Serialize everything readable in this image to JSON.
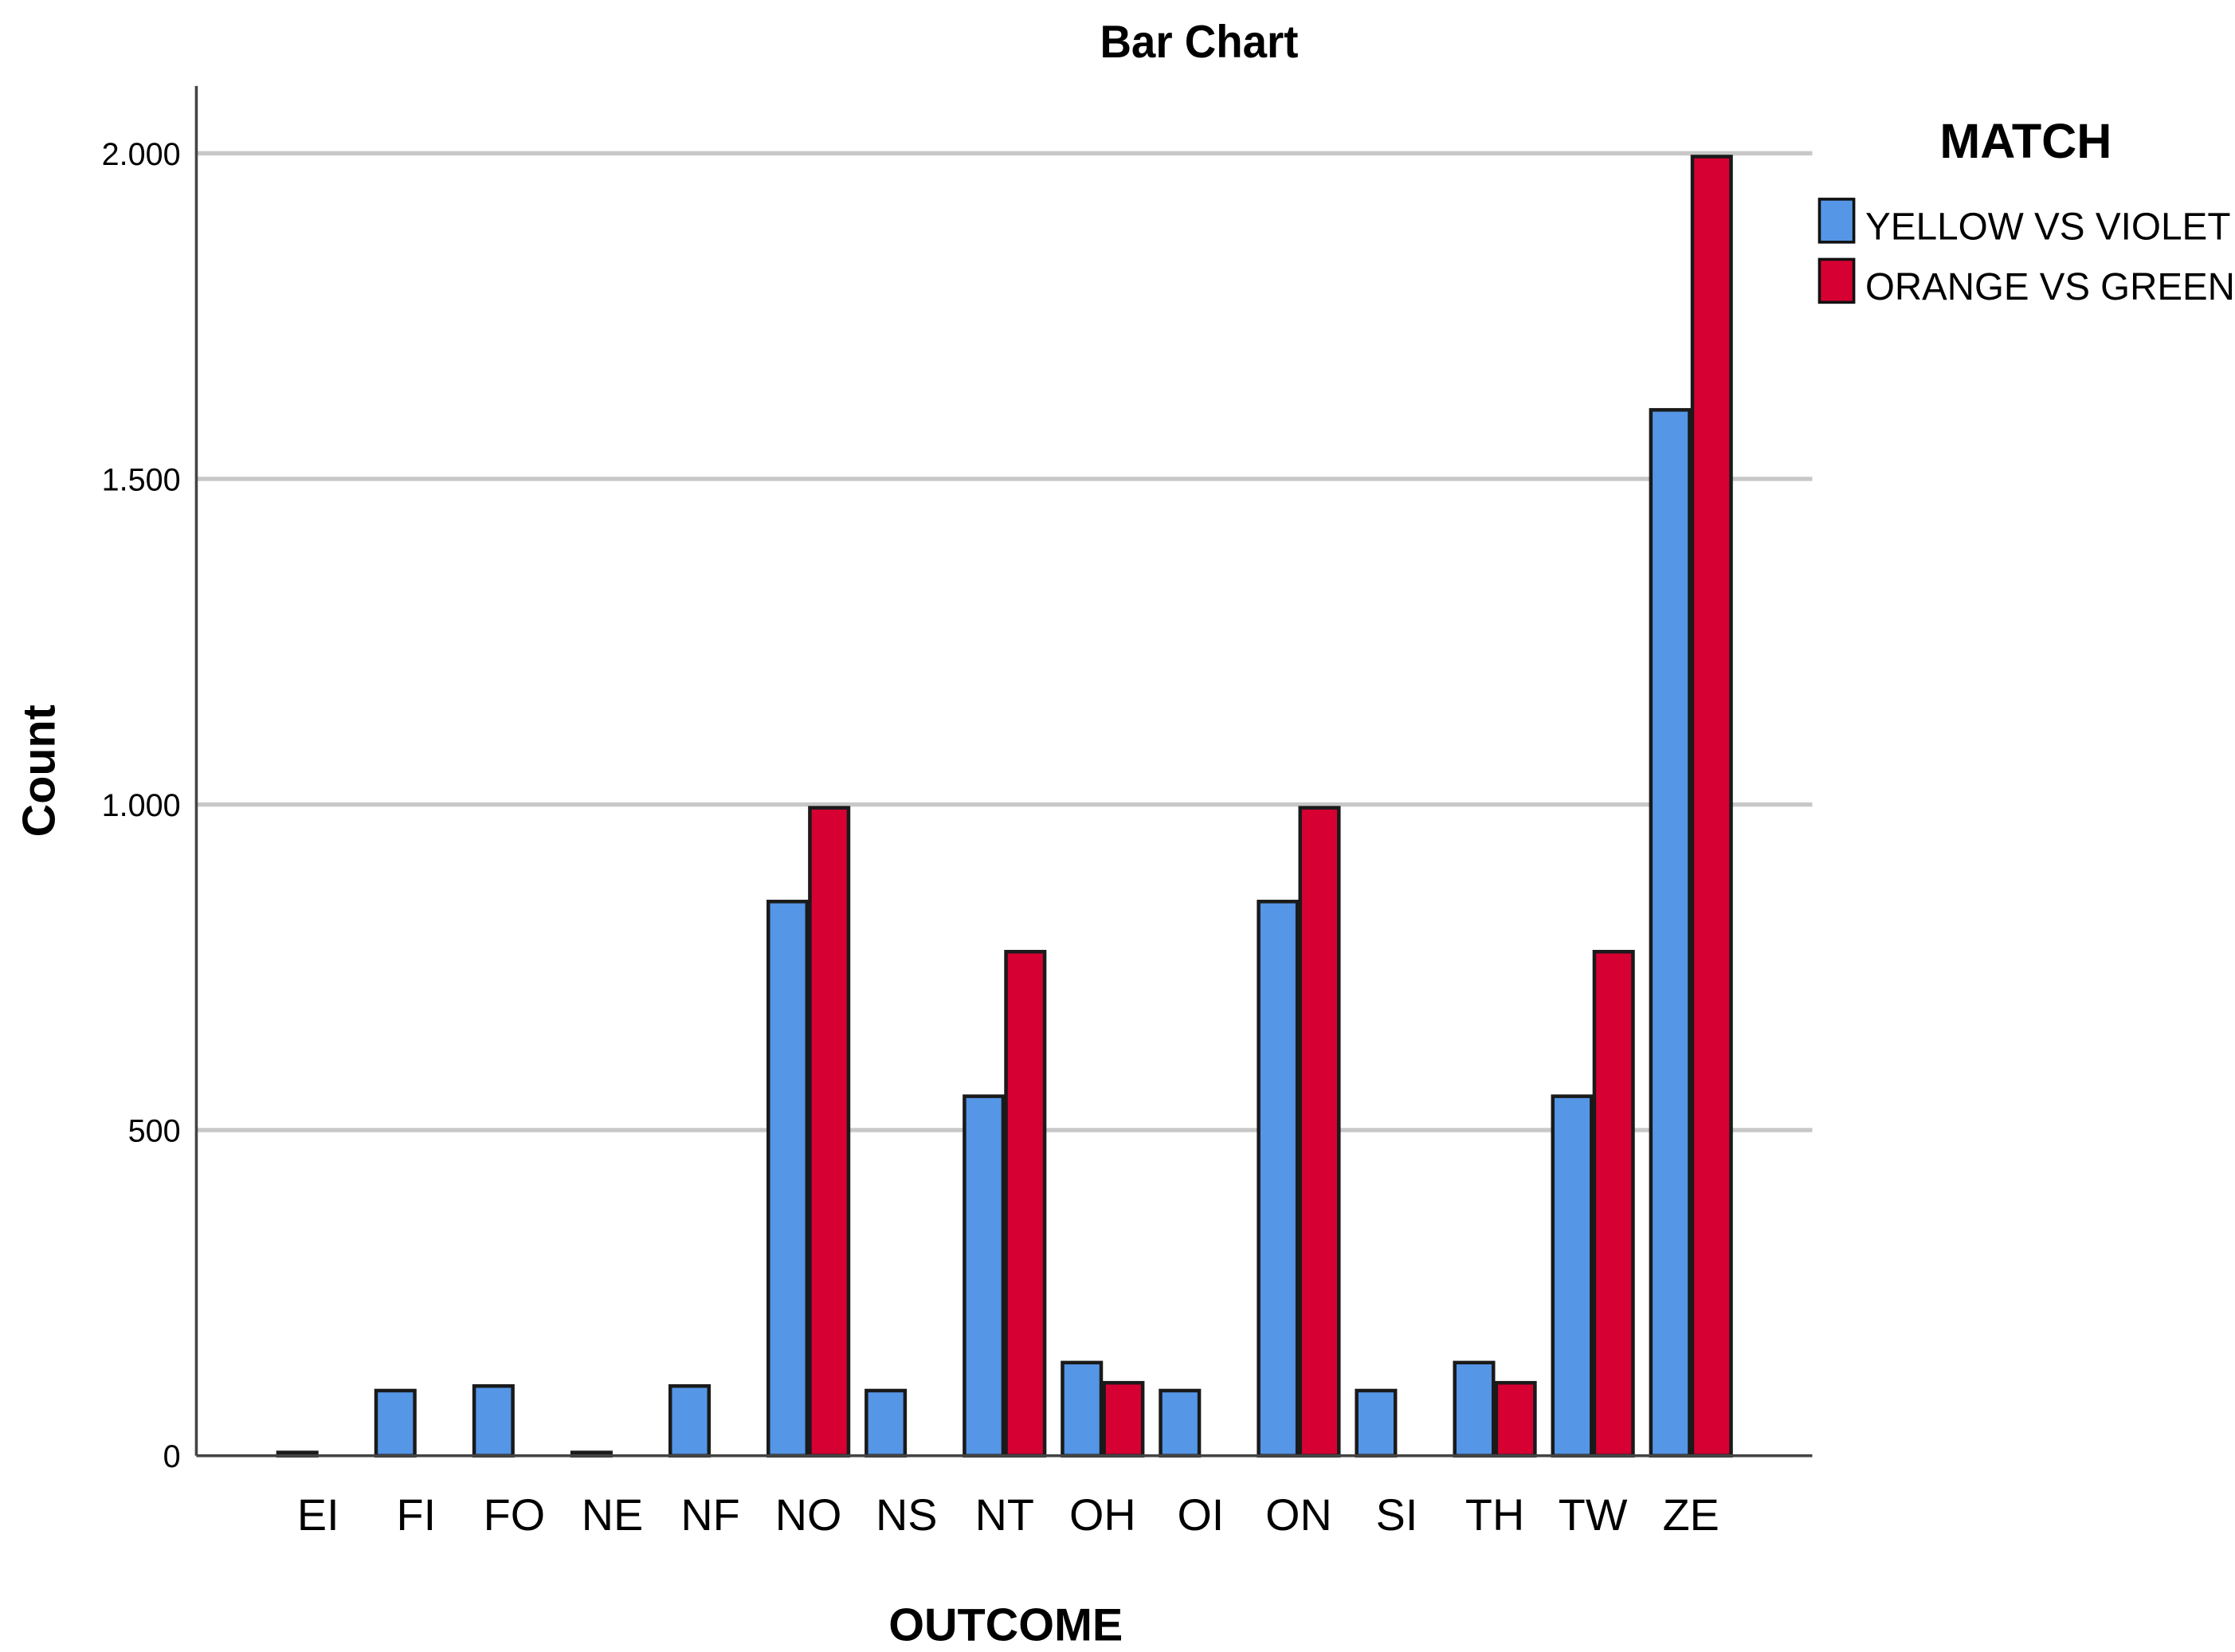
{
  "chart_data": {
    "type": "bar",
    "title": "Bar Chart",
    "xlabel": "OUTCOME",
    "ylabel": "Count",
    "ylim": [
      0,
      2100
    ],
    "yticks": [
      0,
      500,
      1000,
      1500,
      2000
    ],
    "ytick_labels": [
      "0",
      "500",
      "1.000",
      "1.500",
      "2.000"
    ],
    "grid": "horizontal",
    "legend": {
      "title": "MATCH",
      "placement": "top-right"
    },
    "categories": [
      "EI",
      "FI",
      "FO",
      "NE",
      "NF",
      "NO",
      "NS",
      "NT",
      "OH",
      "OI",
      "ON",
      "SI",
      "TH",
      "TW",
      "ZE"
    ],
    "series": [
      {
        "name": "YELLOW VS VIOLET",
        "color": "#5596E6",
        "values": [
          5,
          100,
          107,
          5,
          107,
          851,
          100,
          552,
          143,
          100,
          851,
          100,
          143,
          552,
          1606
        ]
      },
      {
        "name": "ORANGE VS GREEN",
        "color": "#D70033",
        "values": [
          0,
          0,
          0,
          0,
          0,
          995,
          0,
          774,
          112,
          0,
          995,
          0,
          112,
          774,
          1995
        ]
      }
    ]
  }
}
